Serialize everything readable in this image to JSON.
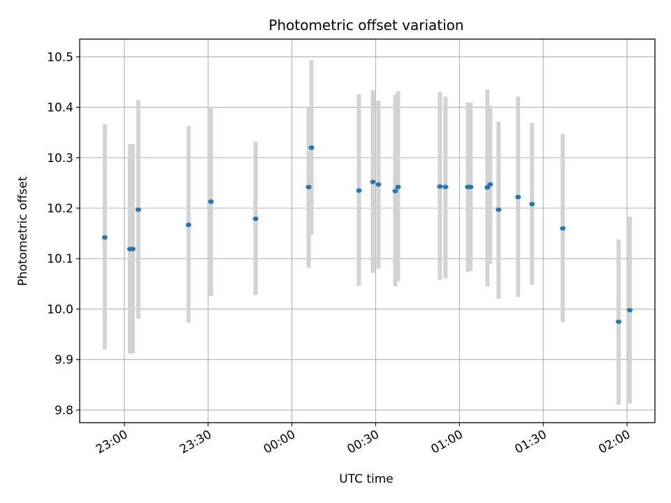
{
  "chart_data": {
    "type": "scatter",
    "title": "Photometric offset variation",
    "xlabel": "UTC time",
    "ylabel": "Photometric offset",
    "xlim": [
      "22:44",
      "02:10"
    ],
    "ylim": [
      9.775,
      10.535
    ],
    "grid": true,
    "x_ticks": [
      "23:00",
      "23:30",
      "00:00",
      "00:30",
      "01:00",
      "01:30",
      "02:00"
    ],
    "y_ticks": [
      "9.8",
      "9.9",
      "10.0",
      "10.1",
      "10.2",
      "10.3",
      "10.4",
      "10.5"
    ],
    "point_color": "#1f77b4",
    "errorbar_color": "#d3d3d3",
    "series": [
      {
        "points": [
          {
            "x": "22:53",
            "y": 10.142,
            "ylo": 9.92,
            "yhi": 10.366
          },
          {
            "x": "23:02",
            "y": 10.119,
            "ylo": 9.912,
            "yhi": 10.327
          },
          {
            "x": "23:03",
            "y": 10.119,
            "ylo": 9.912,
            "yhi": 10.327
          },
          {
            "x": "23:05",
            "y": 10.197,
            "ylo": 9.981,
            "yhi": 10.414
          },
          {
            "x": "23:23",
            "y": 10.167,
            "ylo": 9.973,
            "yhi": 10.363
          },
          {
            "x": "23:31",
            "y": 10.213,
            "ylo": 10.026,
            "yhi": 10.401
          },
          {
            "x": "23:47",
            "y": 10.179,
            "ylo": 10.028,
            "yhi": 10.332
          },
          {
            "x": "00:06",
            "y": 10.242,
            "ylo": 10.082,
            "yhi": 10.401
          },
          {
            "x": "00:07",
            "y": 10.32,
            "ylo": 10.147,
            "yhi": 10.494
          },
          {
            "x": "00:24",
            "y": 10.235,
            "ylo": 10.046,
            "yhi": 10.426
          },
          {
            "x": "00:29",
            "y": 10.252,
            "ylo": 10.072,
            "yhi": 10.434
          },
          {
            "x": "00:31",
            "y": 10.247,
            "ylo": 10.08,
            "yhi": 10.413
          },
          {
            "x": "00:37",
            "y": 10.234,
            "ylo": 10.045,
            "yhi": 10.424
          },
          {
            "x": "00:38",
            "y": 10.242,
            "ylo": 10.055,
            "yhi": 10.432
          },
          {
            "x": "00:53",
            "y": 10.243,
            "ylo": 10.058,
            "yhi": 10.43
          },
          {
            "x": "00:55",
            "y": 10.242,
            "ylo": 10.061,
            "yhi": 10.421
          },
          {
            "x": "01:03",
            "y": 10.242,
            "ylo": 10.074,
            "yhi": 10.41
          },
          {
            "x": "01:04",
            "y": 10.242,
            "ylo": 10.076,
            "yhi": 10.409
          },
          {
            "x": "01:10",
            "y": 10.241,
            "ylo": 10.045,
            "yhi": 10.435
          },
          {
            "x": "01:11",
            "y": 10.247,
            "ylo": 10.09,
            "yhi": 10.403
          },
          {
            "x": "01:14",
            "y": 10.197,
            "ylo": 10.021,
            "yhi": 10.372
          },
          {
            "x": "01:21",
            "y": 10.222,
            "ylo": 10.024,
            "yhi": 10.421
          },
          {
            "x": "01:26",
            "y": 10.208,
            "ylo": 10.048,
            "yhi": 10.369
          },
          {
            "x": "01:37",
            "y": 10.16,
            "ylo": 9.974,
            "yhi": 10.347
          },
          {
            "x": "01:57",
            "y": 9.975,
            "ylo": 9.811,
            "yhi": 10.138
          },
          {
            "x": "02:01",
            "y": 9.998,
            "ylo": 9.813,
            "yhi": 10.183
          }
        ]
      }
    ]
  }
}
